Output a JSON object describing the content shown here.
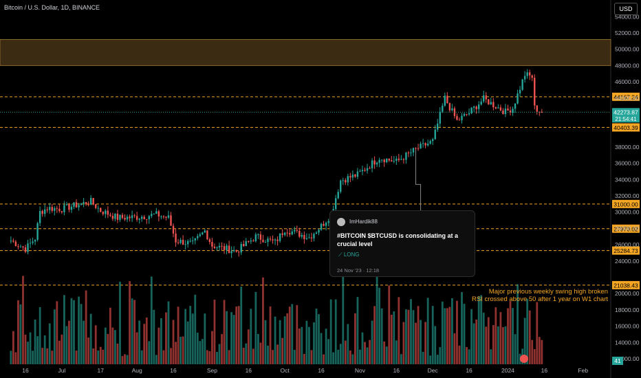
{
  "header": {
    "title": "Bitcoin / U.S. Dollar, 1D, BINANCE",
    "currency": "USD"
  },
  "idea_card": {
    "author": "ImHardik88",
    "headline": "#BITCOIN $BTCUSD is consolidating at a crucial level",
    "tag": "LONG",
    "date": "24 Nov '23 · 12:18"
  },
  "notes": {
    "line1": "Major previous weekly swing high broken",
    "line2": "RSI crossed above 50 after 1 year on W1 chart"
  },
  "chart_data": {
    "type": "candlestick",
    "title": "Bitcoin / U.S. Dollar, 1D, BINANCE",
    "y_axis": {
      "range": [
        10000,
        56000
      ],
      "ticks": [
        54000,
        52000,
        50000,
        48000,
        46000,
        44000,
        42000,
        38000,
        36000,
        34000,
        32000,
        30000,
        28000,
        26000,
        24000,
        20000,
        18000,
        16000,
        14000,
        12000
      ],
      "tick_labels": [
        "54000.00",
        "52000.00",
        "50000.00",
        "48000.00",
        "46000.00",
        "44000.00",
        "42000.00",
        "38000.00",
        "36000.00",
        "34000.00",
        "32000.00",
        "30000.00",
        "28000.00",
        "26000.00",
        "24000.00",
        "20000.00",
        "18000.00",
        "16000.00",
        "14000.00",
        "12000.00"
      ]
    },
    "x_axis": {
      "labels": [
        "16",
        "Jul",
        "17",
        "Aug",
        "16",
        "Sep",
        "16",
        "Oct",
        "16",
        "Nov",
        "16",
        "Dec",
        "16",
        "2024",
        "16",
        "Feb"
      ],
      "months": [
        "2023-06-16",
        "2023-07-01",
        "2023-07-17",
        "2023-08-01",
        "2023-08-16",
        "2023-09-01",
        "2023-09-16",
        "2023-10-01",
        "2023-10-16",
        "2023-11-01",
        "2023-11-16",
        "2023-12-01",
        "2023-12-16",
        "2024-01-01",
        "2024-01-16",
        "2024-02-01"
      ]
    },
    "price_path": [
      [
        "2023-06-10",
        26500
      ],
      [
        "2023-06-16",
        25500
      ],
      [
        "2023-06-20",
        26800
      ],
      [
        "2023-06-22",
        30000
      ],
      [
        "2023-06-25",
        30500
      ],
      [
        "2023-07-01",
        30400
      ],
      [
        "2023-07-06",
        30800
      ],
      [
        "2023-07-13",
        31300
      ],
      [
        "2023-07-17",
        30200
      ],
      [
        "2023-07-24",
        29300
      ],
      [
        "2023-08-01",
        29400
      ],
      [
        "2023-08-09",
        29700
      ],
      [
        "2023-08-14",
        29300
      ],
      [
        "2023-08-17",
        26500
      ],
      [
        "2023-08-24",
        26100
      ],
      [
        "2023-08-29",
        27700
      ],
      [
        "2023-09-01",
        25900
      ],
      [
        "2023-09-11",
        25200
      ],
      [
        "2023-09-19",
        27000
      ],
      [
        "2023-09-27",
        26300
      ],
      [
        "2023-10-01",
        27900
      ],
      [
        "2023-10-11",
        26900
      ],
      [
        "2023-10-16",
        28300
      ],
      [
        "2023-10-20",
        29700
      ],
      [
        "2023-10-24",
        33900
      ],
      [
        "2023-10-31",
        34600
      ],
      [
        "2023-11-09",
        36700
      ],
      [
        "2023-11-16",
        36200
      ],
      [
        "2023-11-24",
        37700
      ],
      [
        "2023-12-01",
        38700
      ],
      [
        "2023-12-04",
        41900
      ],
      [
        "2023-12-06",
        44000
      ],
      [
        "2023-12-11",
        41200
      ],
      [
        "2023-12-16",
        42200
      ],
      [
        "2023-12-22",
        43900
      ],
      [
        "2023-12-31",
        42300
      ],
      [
        "2024-01-03",
        42800
      ],
      [
        "2024-01-08",
        46900
      ],
      [
        "2024-01-11",
        46600
      ],
      [
        "2024-01-12",
        42800
      ],
      [
        "2024-01-15",
        42273.87
      ]
    ],
    "last_price": {
      "value": "42273.87",
      "countdown": "21:54:41"
    },
    "levels": [
      {
        "value": 44167.24,
        "label": "44167.24"
      },
      {
        "value": 40403.39,
        "label": "40403.39"
      },
      {
        "value": 31000.0,
        "label": "31000.00"
      },
      {
        "value": 27970.02,
        "label": "27970.02"
      },
      {
        "value": 25284.73,
        "label": "25284.73"
      },
      {
        "value": 21038.43,
        "label": "21038.43"
      }
    ],
    "zone": {
      "from": 48000,
      "to": 51200
    },
    "volume_label": "41",
    "colors": {
      "up": "#26a69a",
      "down": "#ef5350",
      "level": "#f5a623",
      "zone": "#3a2b12",
      "zone_border": "#8a6a30",
      "last": "#26a69a",
      "grid": "#1a1a1a"
    }
  }
}
